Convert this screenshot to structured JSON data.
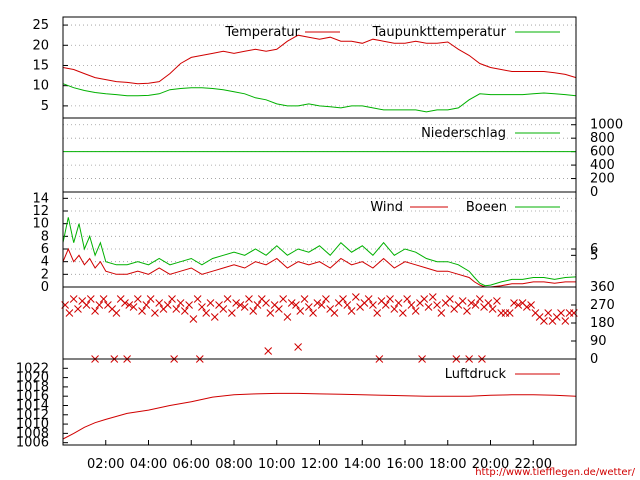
{
  "colors": {
    "red": "#d00000",
    "green": "#00b000",
    "grid": "#999999"
  },
  "footer_url": "http://www.tiefflegen.de/wetter/",
  "x_ticks": [
    "02:00",
    "04:00",
    "06:00",
    "08:00",
    "10:00",
    "12:00",
    "14:00",
    "16:00",
    "18:00",
    "20:00",
    "22:00"
  ],
  "chart_data": [
    {
      "type": "line",
      "xlim": [
        0,
        24
      ],
      "ylim": [
        2,
        27
      ],
      "y_ticks": [
        5,
        10,
        15,
        20,
        25
      ],
      "y_tick_side": "left",
      "grid": true,
      "legend": "top",
      "series": [
        {
          "name": "Temperatur",
          "color": "red",
          "x": [
            0,
            0.5,
            1,
            1.5,
            2,
            2.5,
            3,
            3.5,
            4,
            4.5,
            5,
            5.5,
            6,
            6.5,
            7,
            7.5,
            8,
            8.5,
            9,
            9.5,
            10,
            10.5,
            11,
            11.5,
            12,
            12.5,
            13,
            13.5,
            14,
            14.5,
            15,
            15.5,
            16,
            16.5,
            17,
            17.5,
            18,
            18.5,
            19,
            19.5,
            20,
            20.5,
            21,
            21.5,
            22,
            22.5,
            23,
            23.5,
            24
          ],
          "values": [
            14.5,
            14,
            13,
            12,
            11.5,
            11,
            10.8,
            10.5,
            10.6,
            11,
            13,
            15.5,
            17,
            17.5,
            18,
            18.5,
            18,
            18.5,
            19,
            18.5,
            19,
            21,
            22.5,
            22,
            21.5,
            22,
            21,
            21,
            20.5,
            21.5,
            21,
            20.5,
            20.5,
            21,
            20.5,
            20.5,
            20.8,
            19,
            17.5,
            15.5,
            14.5,
            14,
            13.5,
            13.5,
            13.5,
            13.5,
            13.2,
            12.8,
            12
          ]
        },
        {
          "name": "Taupunkttemperatur",
          "color": "green",
          "x": [
            0,
            0.5,
            1,
            1.5,
            2,
            2.5,
            3,
            3.5,
            4,
            4.5,
            5,
            5.5,
            6,
            6.5,
            7,
            7.5,
            8,
            8.5,
            9,
            9.5,
            10,
            10.5,
            11,
            11.5,
            12,
            12.5,
            13,
            13.5,
            14,
            14.5,
            15,
            15.5,
            16,
            16.5,
            17,
            17.5,
            18,
            18.5,
            19,
            19.5,
            20,
            20.5,
            21,
            21.5,
            22,
            22.5,
            23,
            23.5,
            24
          ],
          "values": [
            10.5,
            9.5,
            8.8,
            8.3,
            8,
            7.8,
            7.5,
            7.5,
            7.6,
            8,
            9,
            9.3,
            9.5,
            9.5,
            9.3,
            9,
            8.5,
            8,
            7,
            6.5,
            5.5,
            5,
            5,
            5.5,
            5,
            4.8,
            4.5,
            5,
            5,
            4.5,
            4,
            4,
            4,
            4,
            3.5,
            4,
            4,
            4.5,
            6.5,
            8,
            7.8,
            7.8,
            7.8,
            7.8,
            8,
            8.2,
            8,
            7.8,
            7.5
          ]
        }
      ]
    },
    {
      "type": "line",
      "xlim": [
        0,
        24
      ],
      "ylim": [
        0,
        1100
      ],
      "y_ticks": [
        0,
        200,
        400,
        600,
        800,
        1000
      ],
      "y_tick_side": "right",
      "grid": true,
      "legend": "top-right",
      "series": [
        {
          "name": "Niederschlag",
          "color": "green",
          "x": [
            0,
            24
          ],
          "values": [
            600,
            600
          ]
        }
      ]
    },
    {
      "type": "line",
      "xlim": [
        0,
        24
      ],
      "ylim": [
        0,
        15
      ],
      "y_ticks": [
        0,
        2,
        4,
        6,
        8,
        10,
        12,
        14
      ],
      "y_ticks_right": [
        6,
        5
      ],
      "y_tick_side": "left",
      "grid": true,
      "legend": "top",
      "series": [
        {
          "name": "Wind",
          "color": "red",
          "x": [
            0,
            0.25,
            0.5,
            0.75,
            1,
            1.25,
            1.5,
            1.75,
            2,
            2.5,
            3,
            3.5,
            4,
            4.5,
            5,
            5.5,
            6,
            6.5,
            7,
            7.5,
            8,
            8.5,
            9,
            9.5,
            10,
            10.5,
            11,
            11.5,
            12,
            12.5,
            13,
            13.5,
            14,
            14.5,
            15,
            15.5,
            16,
            16.5,
            17,
            17.5,
            18,
            18.5,
            19,
            19.25,
            19.5,
            19.75,
            20,
            20.5,
            21,
            21.5,
            22,
            22.5,
            23,
            23.5,
            24
          ],
          "values": [
            4,
            6,
            4,
            5,
            3.5,
            4.5,
            3,
            4,
            2.5,
            2,
            2,
            2.5,
            2,
            3,
            2,
            2.5,
            3,
            2,
            2.5,
            3,
            3.5,
            3,
            4,
            3.5,
            4.5,
            3,
            4,
            3.5,
            4,
            3,
            4.5,
            3.5,
            4,
            3,
            4.5,
            3,
            4,
            3.5,
            3,
            2.5,
            2.5,
            2,
            1.5,
            0.8,
            0.3,
            0,
            0,
            0.2,
            0.5,
            0.5,
            0.8,
            0.8,
            0.6,
            0.8,
            0.8
          ]
        },
        {
          "name": "Boeen",
          "color": "green",
          "x": [
            0,
            0.25,
            0.5,
            0.75,
            1,
            1.25,
            1.5,
            1.75,
            2,
            2.5,
            3,
            3.5,
            4,
            4.5,
            5,
            5.5,
            6,
            6.5,
            7,
            7.5,
            8,
            8.5,
            9,
            9.5,
            10,
            10.5,
            11,
            11.5,
            12,
            12.5,
            13,
            13.5,
            14,
            14.5,
            15,
            15.5,
            16,
            16.5,
            17,
            17.5,
            18,
            18.5,
            19,
            19.25,
            19.5,
            19.75,
            20,
            20.5,
            21,
            21.5,
            22,
            22.5,
            23,
            23.5,
            24
          ],
          "values": [
            7,
            11,
            7,
            10,
            6,
            8,
            5,
            7,
            4,
            3.5,
            3.5,
            4,
            3.5,
            4.5,
            3.5,
            4,
            4.5,
            3.5,
            4.5,
            5,
            5.5,
            5,
            6,
            5,
            6.5,
            5,
            6,
            5.5,
            6.5,
            5,
            7,
            5.5,
            6.5,
            5,
            7,
            5,
            6,
            5.5,
            4.5,
            4,
            4,
            3.5,
            2.5,
            1.5,
            0.6,
            0.2,
            0.3,
            0.8,
            1.2,
            1.2,
            1.5,
            1.5,
            1.2,
            1.5,
            1.6
          ]
        }
      ]
    },
    {
      "type": "scatter",
      "xlim": [
        0,
        24
      ],
      "ylim": [
        0,
        360
      ],
      "y_ticks": [
        0,
        90,
        180,
        270,
        360
      ],
      "y_tick_side": "right",
      "marker": "x",
      "color": "red",
      "x": [
        0.1,
        0.3,
        0.5,
        0.7,
        0.9,
        1.1,
        1.3,
        1.5,
        1.7,
        1.9,
        2.1,
        2.3,
        2.5,
        2.7,
        2.9,
        3.1,
        3.3,
        3.5,
        3.7,
        3.9,
        4.1,
        4.3,
        4.5,
        4.7,
        4.9,
        5.1,
        5.3,
        5.5,
        5.7,
        5.9,
        6.1,
        6.3,
        6.5,
        6.7,
        6.9,
        7.1,
        7.3,
        7.5,
        7.7,
        7.9,
        8.1,
        8.3,
        8.5,
        8.7,
        8.9,
        9.1,
        9.3,
        9.5,
        9.7,
        9.9,
        10.1,
        10.3,
        10.5,
        10.7,
        10.9,
        11.1,
        11.3,
        11.5,
        11.7,
        11.9,
        12.1,
        12.3,
        12.5,
        12.7,
        12.9,
        13.1,
        13.3,
        13.5,
        13.7,
        13.9,
        14.1,
        14.3,
        14.5,
        14.7,
        14.9,
        15.1,
        15.3,
        15.5,
        15.7,
        15.9,
        16.1,
        16.3,
        16.5,
        16.7,
        16.9,
        17.1,
        17.3,
        17.5,
        17.7,
        17.9,
        18.1,
        18.3,
        18.5,
        18.7,
        18.9,
        19.1,
        19.3,
        19.5,
        19.7,
        19.9,
        20.1,
        20.3,
        20.5,
        20.7,
        20.9,
        21.1,
        21.3,
        21.5,
        21.7,
        21.9,
        22.1,
        22.3,
        22.5,
        22.7,
        22.9,
        23.1,
        23.3,
        23.5,
        23.7,
        23.9,
        1.5,
        2.4,
        3.0,
        5.2,
        6.4,
        9.6,
        11.0,
        14.8,
        16.8,
        18.4,
        19.0,
        19.6
      ],
      "values": [
        270,
        230,
        300,
        250,
        290,
        270,
        300,
        240,
        270,
        300,
        270,
        250,
        230,
        300,
        280,
        270,
        260,
        300,
        240,
        270,
        300,
        230,
        280,
        250,
        270,
        300,
        250,
        280,
        240,
        270,
        200,
        300,
        260,
        230,
        280,
        210,
        270,
        250,
        300,
        230,
        280,
        270,
        260,
        300,
        240,
        270,
        300,
        280,
        230,
        270,
        250,
        300,
        210,
        280,
        270,
        240,
        300,
        260,
        230,
        280,
        270,
        300,
        250,
        230,
        280,
        300,
        270,
        240,
        310,
        260,
        280,
        300,
        270,
        230,
        290,
        270,
        300,
        250,
        280,
        230,
        300,
        270,
        240,
        280,
        300,
        260,
        310,
        270,
        230,
        280,
        300,
        250,
        270,
        290,
        240,
        280,
        270,
        300,
        260,
        280,
        250,
        290,
        230,
        230,
        230,
        280,
        270,
        280,
        260,
        270,
        230,
        210,
        190,
        230,
        190,
        210,
        230,
        190,
        230,
        230,
        0,
        0,
        0,
        0,
        0,
        40,
        60,
        0,
        0,
        0,
        0,
        0
      ]
    },
    {
      "type": "line",
      "xlim": [
        0,
        24
      ],
      "ylim": [
        1005.5,
        1024
      ],
      "y_ticks": [
        1006,
        1008,
        1010,
        1012,
        1014,
        1016,
        1018,
        1020,
        1022
      ],
      "y_tick_side": "left",
      "grid": false,
      "legend": "top-right",
      "series": [
        {
          "name": "Luftdruck",
          "color": "red",
          "x": [
            0,
            0.5,
            1,
            1.5,
            2,
            3,
            4,
            5,
            6,
            7,
            8,
            9,
            10,
            11,
            12,
            13,
            14,
            15,
            16,
            17,
            18,
            19,
            20,
            21,
            22,
            23,
            24
          ],
          "values": [
            1006.8,
            1008,
            1009.3,
            1010.3,
            1011,
            1012.3,
            1013,
            1014,
            1014.8,
            1015.8,
            1016.3,
            1016.5,
            1016.6,
            1016.6,
            1016.5,
            1016.4,
            1016.3,
            1016.2,
            1016.1,
            1016.0,
            1016.0,
            1016.0,
            1016.2,
            1016.3,
            1016.3,
            1016.2,
            1016.0
          ]
        }
      ]
    }
  ]
}
